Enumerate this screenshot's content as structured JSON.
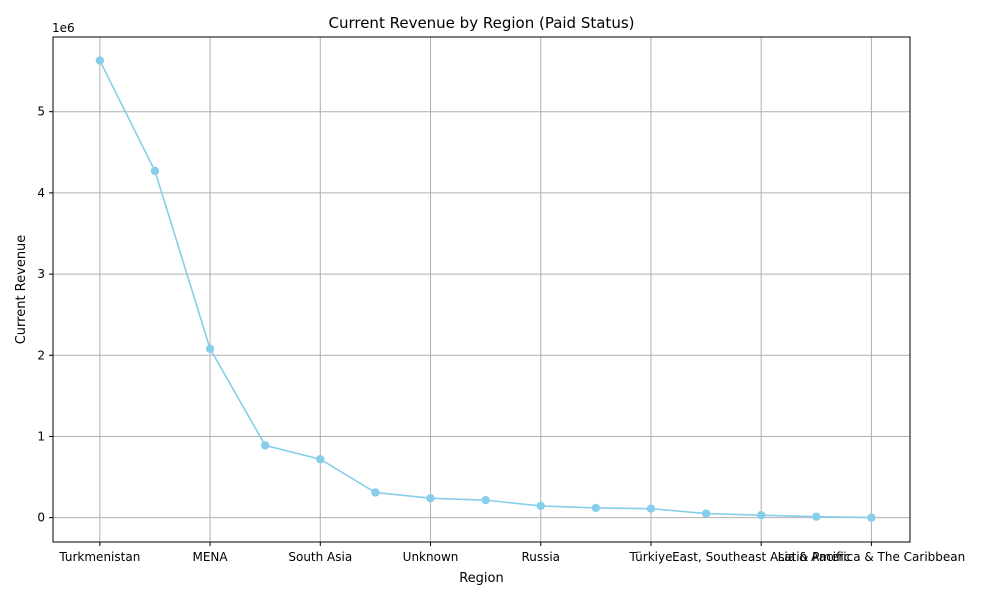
{
  "chart_data": {
    "type": "line",
    "title": "Current Revenue by Region (Paid Status)",
    "xlabel": "Region",
    "ylabel": "Current Revenue",
    "y_multiplier_label": "1e6",
    "x_tick_labels": [
      "Turkmenistan",
      "MENA",
      "South Asia",
      "Unknown",
      "Russia",
      "Türkiye",
      "East, Southeast Asia & Pacific",
      "Latin America & The Caribbean"
    ],
    "x_tick_positions": [
      0,
      2,
      4,
      6,
      8,
      10,
      12,
      14
    ],
    "y_ticks": [
      0,
      1,
      2,
      3,
      4,
      5
    ],
    "xlim": [
      -0.85,
      14.7
    ],
    "ylim": [
      -300000,
      5920000
    ],
    "grid": true,
    "series": [
      {
        "color": "#87CEEB",
        "marker": "circle",
        "x": [
          0,
          1,
          2,
          3,
          4,
          5,
          6,
          7,
          8,
          9,
          10,
          11,
          12,
          13,
          14
        ],
        "values": [
          5630000,
          4270000,
          2080000,
          890000,
          720000,
          310000,
          240000,
          215000,
          145000,
          120000,
          110000,
          50000,
          30000,
          12000,
          0
        ]
      }
    ]
  }
}
